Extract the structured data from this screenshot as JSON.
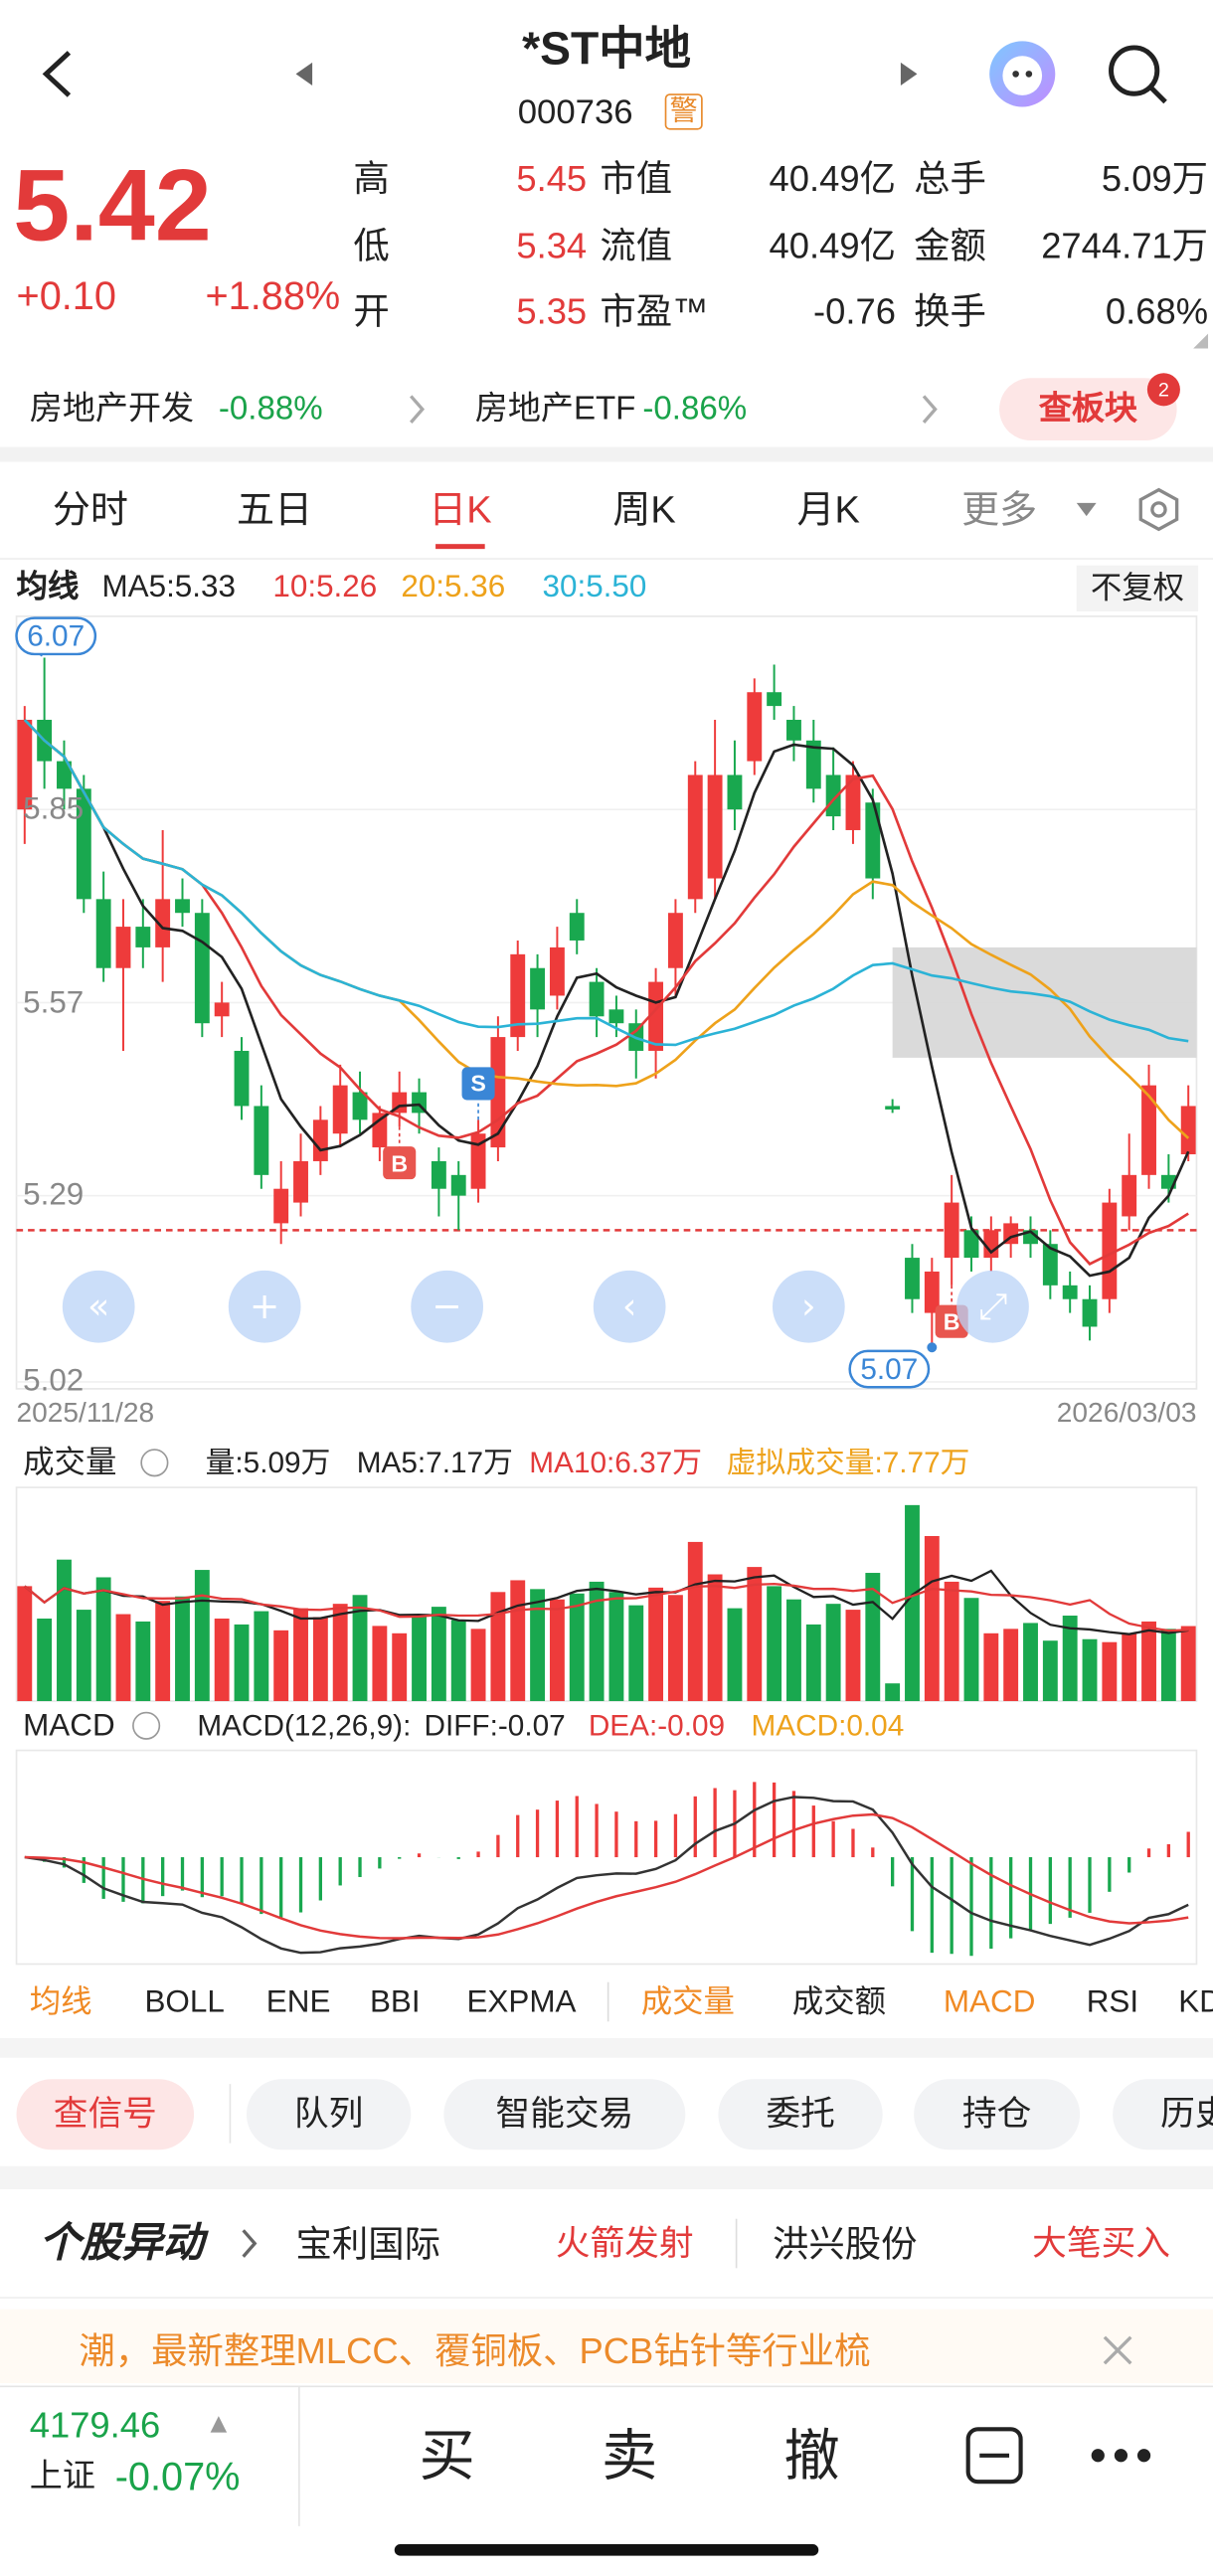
{
  "header": {
    "title": "*ST中地",
    "code": "000736",
    "badge": "警"
  },
  "quote": {
    "price": "5.42",
    "change": "+0.10",
    "change_pct": "+1.88%",
    "stats": [
      [
        {
          "label": "高",
          "value": "5.45"
        },
        {
          "label": "市值",
          "value": "40.49亿"
        },
        {
          "label": "总手",
          "value": "5.09万"
        }
      ],
      [
        {
          "label": "低",
          "value": "5.34"
        },
        {
          "label": "流值",
          "value": "40.49亿"
        },
        {
          "label": "金额",
          "value": "2744.71万"
        }
      ],
      [
        {
          "label": "开",
          "value": "5.35"
        },
        {
          "label": "市盈™",
          "value": "-0.76"
        },
        {
          "label": "换手",
          "value": "0.68%"
        }
      ]
    ]
  },
  "sector": {
    "items": [
      {
        "name": "房地产开发",
        "change": "-0.88%"
      },
      {
        "name": "房地产ETF",
        "change": "-0.86%"
      }
    ],
    "button": "查板块",
    "badge": "2"
  },
  "tabs": {
    "items": [
      "分时",
      "五日",
      "日K",
      "周K",
      "月K",
      "更多"
    ],
    "active": 2
  },
  "kline": {
    "ma_title": "均线",
    "ma": [
      {
        "label": "MA5:5.33",
        "color": "#222222"
      },
      {
        "label": "10:5.26",
        "color": "#e23a3a"
      },
      {
        "label": "20:5.36",
        "color": "#eea21b"
      },
      {
        "label": "30:5.50",
        "color": "#2bb3d6"
      }
    ],
    "adjust": "不复权",
    "ylim": [
      5.01,
      6.13
    ],
    "yticks": [
      5.85,
      5.57,
      5.29,
      5.02
    ],
    "high_label": "6.07",
    "low_label": "5.07",
    "start_date": "2025/11/28",
    "end_date": "2026/03/03",
    "open": [
      5.85,
      5.98,
      5.92,
      5.88,
      5.72,
      5.62,
      5.68,
      5.65,
      5.72,
      5.7,
      5.55,
      5.5,
      5.42,
      5.25,
      5.28,
      5.34,
      5.38,
      5.44,
      5.36,
      5.41,
      5.44,
      5.34,
      5.32,
      5.3,
      5.36,
      5.52,
      5.62,
      5.58,
      5.7,
      5.6,
      5.56,
      5.54,
      5.5,
      5.62,
      5.72,
      5.75,
      5.9,
      5.92,
      6.02,
      5.98,
      5.95,
      5.9,
      5.82,
      5.86,
      5.42,
      5.2,
      5.12,
      5.2,
      5.24,
      5.2,
      5.22,
      5.24,
      5.22,
      5.16,
      5.14,
      5.14,
      5.26,
      5.32,
      5.32,
      5.35
    ],
    "high": [
      6.0,
      6.07,
      5.95,
      5.9,
      5.76,
      5.72,
      5.72,
      5.82,
      5.75,
      5.72,
      5.6,
      5.52,
      5.45,
      5.34,
      5.38,
      5.42,
      5.48,
      5.47,
      5.42,
      5.47,
      5.46,
      5.36,
      5.34,
      5.4,
      5.55,
      5.66,
      5.64,
      5.68,
      5.72,
      5.62,
      5.58,
      5.56,
      5.62,
      5.72,
      5.92,
      5.98,
      5.95,
      6.04,
      6.06,
      6.0,
      5.98,
      5.94,
      5.92,
      5.88,
      5.43,
      5.22,
      5.2,
      5.32,
      5.26,
      5.26,
      5.26,
      5.26,
      5.24,
      5.18,
      5.16,
      5.3,
      5.38,
      5.48,
      5.35,
      5.45
    ],
    "low": [
      5.8,
      5.88,
      5.85,
      5.7,
      5.6,
      5.5,
      5.62,
      5.6,
      5.68,
      5.52,
      5.52,
      5.4,
      5.3,
      5.22,
      5.26,
      5.32,
      5.36,
      5.38,
      5.34,
      5.39,
      5.38,
      5.26,
      5.24,
      5.28,
      5.34,
      5.5,
      5.52,
      5.56,
      5.64,
      5.52,
      5.52,
      5.46,
      5.46,
      5.58,
      5.7,
      5.72,
      5.82,
      5.9,
      5.98,
      5.92,
      5.86,
      5.82,
      5.8,
      5.72,
      5.41,
      5.12,
      5.07,
      5.16,
      5.18,
      5.18,
      5.2,
      5.2,
      5.14,
      5.12,
      5.08,
      5.12,
      5.24,
      5.3,
      5.28,
      5.34
    ],
    "close": [
      5.98,
      5.92,
      5.88,
      5.72,
      5.62,
      5.68,
      5.65,
      5.72,
      5.7,
      5.54,
      5.57,
      5.42,
      5.32,
      5.3,
      5.34,
      5.4,
      5.45,
      5.4,
      5.41,
      5.44,
      5.41,
      5.3,
      5.29,
      5.38,
      5.52,
      5.64,
      5.56,
      5.65,
      5.66,
      5.55,
      5.54,
      5.5,
      5.6,
      5.7,
      5.9,
      5.9,
      5.85,
      6.02,
      6.0,
      5.95,
      5.88,
      5.84,
      5.9,
      5.75,
      5.415,
      5.14,
      5.18,
      5.28,
      5.2,
      5.24,
      5.25,
      5.22,
      5.16,
      5.14,
      5.1,
      5.28,
      5.32,
      5.45,
      5.3,
      5.42
    ],
    "signals": [
      {
        "index": 19,
        "label": "B"
      },
      {
        "index": 23,
        "label": "S"
      },
      {
        "index": 47,
        "label": "B"
      }
    ],
    "zone": [
      5.49,
      5.65
    ],
    "zone_start": 44,
    "ref_price": 5.24
  },
  "volume": {
    "title": "成交量",
    "labels": [
      {
        "text": "量:5.09万",
        "color": "#222222"
      },
      {
        "text": "MA5:7.17万",
        "color": "#222222"
      },
      {
        "text": "MA10:6.37万",
        "color": "#e23a3a"
      },
      {
        "text": "虚拟成交量:7.77万",
        "color": "#eea21b"
      }
    ],
    "ylim": [
      0,
      14.5
    ],
    "values": [
      7.8,
      5.6,
      9.6,
      6.2,
      8.4,
      5.9,
      5.4,
      6.8,
      7.1,
      8.9,
      5.6,
      5.2,
      6.1,
      4.8,
      6.3,
      5.7,
      6.6,
      7.2,
      5.1,
      4.6,
      5.8,
      6.4,
      5.5,
      4.9,
      7.4,
      8.2,
      7.6,
      6.9,
      7.3,
      8.1,
      7.4,
      6.5,
      7.7,
      7.2,
      10.8,
      8.6,
      6.3,
      9.1,
      7.8,
      6.9,
      5.2,
      6.6,
      6.2,
      8.7,
      1.2,
      13.3,
      11.2,
      8.1,
      7.0,
      4.6,
      4.9,
      5.3,
      4.1,
      5.8,
      4.2,
      4.0,
      4.6,
      5.4,
      4.9,
      5.09
    ]
  },
  "macd": {
    "title": "MACD",
    "labels": [
      {
        "text": "MACD(12,26,9):",
        "color": "#222222"
      },
      {
        "text": "DIFF:-0.07",
        "color": "#222222"
      },
      {
        "text": "DEA:-0.09",
        "color": "#e23a3a"
      },
      {
        "text": "MACD:0.04",
        "color": "#eea21b"
      }
    ]
  },
  "indicator_tabs": [
    {
      "text": "均线",
      "on": true
    },
    {
      "text": "BOLL",
      "on": false
    },
    {
      "text": "ENE",
      "on": false
    },
    {
      "text": "BBI",
      "on": false
    },
    {
      "text": "EXPMA",
      "on": false
    },
    {
      "text": "成交量",
      "on": true
    },
    {
      "text": "成交额",
      "on": false
    },
    {
      "text": "MACD",
      "on": true
    },
    {
      "text": "RSI",
      "on": false
    },
    {
      "text": "KDJ",
      "on": false
    }
  ],
  "actions": [
    "查信号",
    "队列",
    "智能交易",
    "委托",
    "持仓",
    "历史"
  ],
  "alerts": {
    "title": "个股异动",
    "items": [
      {
        "stock": "宝利国际",
        "event": "火箭发射"
      },
      {
        "stock": "洪兴股份",
        "event": "大笔买入"
      }
    ]
  },
  "news": "潮，最新整理MLCC、覆铜板、PCB钻针等行业梳",
  "footer": {
    "index_value": "4179.46",
    "index_name": "上证",
    "index_change": "-0.07%",
    "buttons": [
      "买",
      "卖",
      "撤"
    ]
  }
}
